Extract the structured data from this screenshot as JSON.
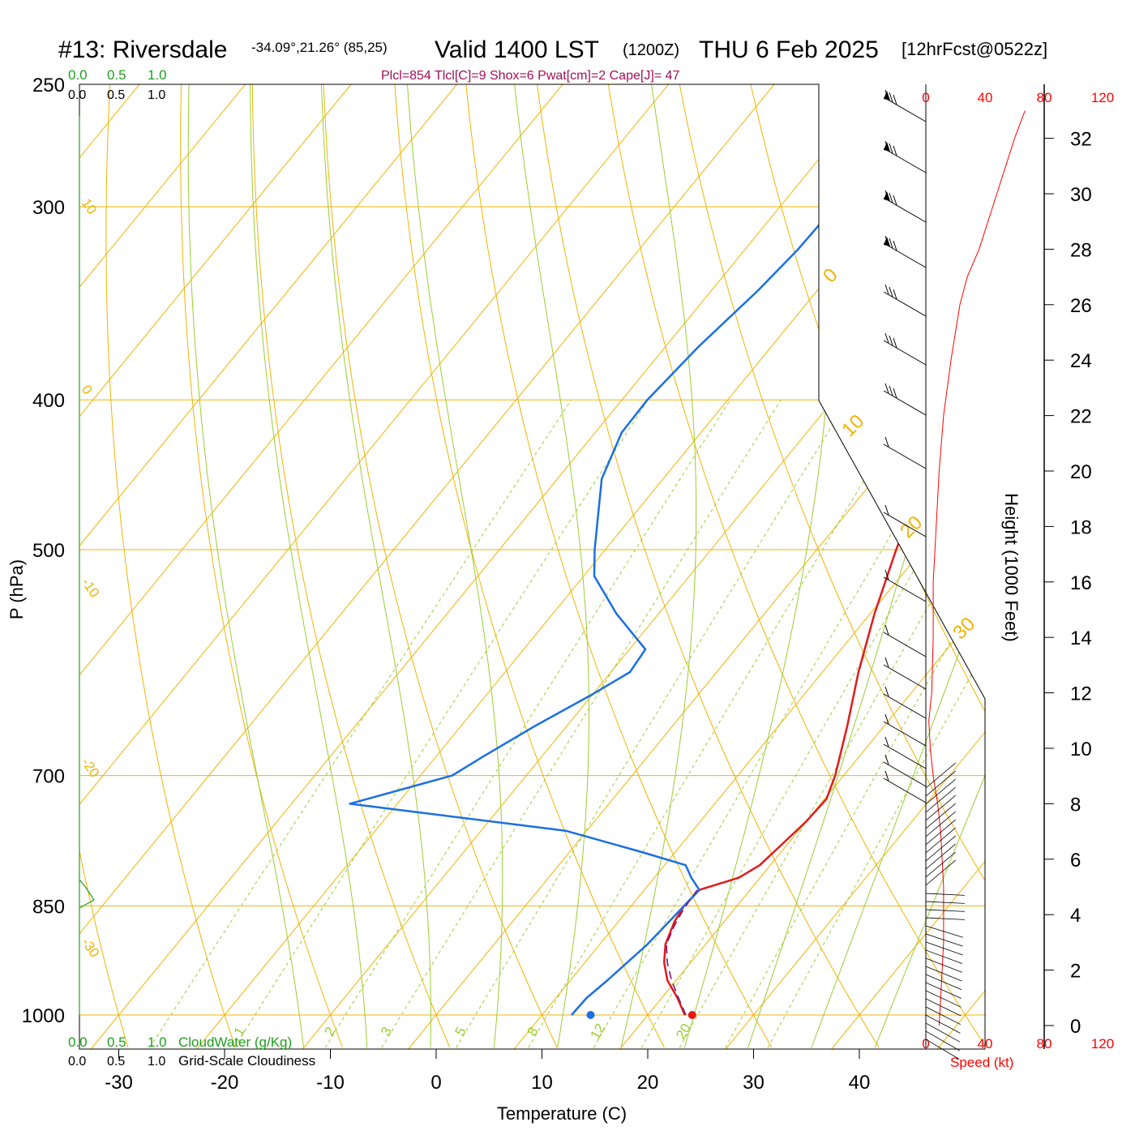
{
  "header": {
    "station": "#13: Riversdale",
    "coords": "-34.09°,21.26° (85,25)",
    "valid": "Valid 1400 LST",
    "zulu": "(1200Z)",
    "date": "THU 6 Feb 2025",
    "forecast": "[12hrFcst@0522z]",
    "indices": "Plcl=854 Tlcl[C]=9 Shox=6 Pwat[cm]=2 Cape[J]= 47"
  },
  "colors": {
    "temperature": "#e31a1a",
    "dewpoint": "#1a6fe3",
    "isotherm": "#f0b400",
    "dry_adiabat": "#f0b400",
    "moist_adiabat": "#9acd32",
    "mixing_ratio": "#9acd32",
    "cloudwater": "#1ea01e",
    "parcel": "#7a1a7a",
    "indices_text": "#a0105a",
    "speed": "#ff0000"
  },
  "chart_data": {
    "type": "line",
    "title": "#13: Riversdale",
    "xlabel": "Temperature (C)",
    "ylabel": "P (hPa)",
    "x_ticks": [
      -30,
      -20,
      -10,
      0,
      10,
      20,
      30,
      40
    ],
    "y_ticks": [
      250,
      300,
      400,
      500,
      700,
      850,
      1000
    ],
    "pressure_range": [
      250,
      1000
    ],
    "skewed_isotherm_labels": [
      "10",
      "0",
      "-10",
      "-20",
      "-30"
    ],
    "dry_adiabat_labels": [
      "0",
      "10",
      "20",
      "30"
    ],
    "mixing_ratio_labels": [
      "1",
      "2",
      "3",
      "5",
      "8",
      "12",
      "20"
    ],
    "series": [
      {
        "name": "temperature",
        "points": [
          [
            1000,
            23.5
          ],
          [
            975,
            21.5
          ],
          [
            950,
            19.2
          ],
          [
            925,
            17.5
          ],
          [
            900,
            16.2
          ],
          [
            870,
            15.3
          ],
          [
            850,
            15.0
          ],
          [
            830,
            15.2
          ],
          [
            815,
            18.0
          ],
          [
            800,
            19.0
          ],
          [
            775,
            19.5
          ],
          [
            750,
            20.0
          ],
          [
            725,
            20.2
          ],
          [
            700,
            19.2
          ],
          [
            650,
            16.5
          ],
          [
            600,
            13.4
          ],
          [
            550,
            10.4
          ],
          [
            500,
            7.5
          ],
          [
            450,
            4.7
          ],
          [
            400,
            2.0
          ],
          [
            370,
            0.2
          ],
          [
            340,
            -1.3
          ],
          [
            320,
            -1.9
          ],
          [
            300,
            -2.6
          ],
          [
            275,
            -3.5
          ],
          [
            262,
            -4.2
          ]
        ]
      },
      {
        "name": "dewpoint",
        "points": [
          [
            1000,
            12.8
          ],
          [
            975,
            12.9
          ],
          [
            950,
            13.5
          ],
          [
            900,
            14.5
          ],
          [
            850,
            15.0
          ],
          [
            830,
            15.2
          ],
          [
            815,
            13.5
          ],
          [
            800,
            12.0
          ],
          [
            785,
            7.0
          ],
          [
            760,
            -2.0
          ],
          [
            730,
            -24.5
          ],
          [
            700,
            -17.0
          ],
          [
            680,
            -15.5
          ],
          [
            650,
            -13.0
          ],
          [
            620,
            -10.0
          ],
          [
            600,
            -8.2
          ],
          [
            580,
            -8.5
          ],
          [
            550,
            -14.0
          ],
          [
            520,
            -19.0
          ],
          [
            500,
            -21.0
          ],
          [
            450,
            -25.8
          ],
          [
            420,
            -27.5
          ],
          [
            400,
            -27.6
          ],
          [
            370,
            -26.9
          ],
          [
            340,
            -25.6
          ],
          [
            320,
            -25.0
          ],
          [
            300,
            -24.8
          ],
          [
            275,
            -24.3
          ],
          [
            262,
            -24.5
          ]
        ]
      },
      {
        "name": "parcel",
        "points": [
          [
            1000,
            23.6
          ],
          [
            975,
            21.6
          ],
          [
            950,
            19.6
          ],
          [
            925,
            17.8
          ],
          [
            900,
            16.3
          ],
          [
            875,
            15.6
          ],
          [
            854,
            15.2
          ],
          [
            830,
            15.0
          ]
        ]
      }
    ],
    "surface_temperature": 24.2,
    "surface_dewpoint": 14.6,
    "cloudwater_label": "CloudWater (g/Kg)",
    "cloudiness_label": "Grid-Scale Cloudiness",
    "cloud_axis_ticks": [
      "0.0",
      "0.5",
      "1.0"
    ],
    "wind_speed_axis": {
      "label": "Speed (kt)",
      "ticks": [
        "0",
        "40",
        "80",
        "120"
      ]
    },
    "height_axis": {
      "label": "Height (1000 Feet)",
      "ticks": [
        "0",
        "2",
        "4",
        "6",
        "8",
        "10",
        "12",
        "14",
        "16",
        "18",
        "20",
        "22",
        "24",
        "26",
        "28",
        "30",
        "32"
      ]
    },
    "wind_speed_profile": [
      [
        0,
        9
      ],
      [
        1,
        10
      ],
      [
        2,
        11
      ],
      [
        3,
        12
      ],
      [
        4,
        12
      ],
      [
        5,
        12
      ],
      [
        6,
        11
      ],
      [
        7,
        10
      ],
      [
        8,
        8
      ],
      [
        9,
        5
      ],
      [
        10,
        3
      ],
      [
        11,
        2
      ],
      [
        12,
        4
      ],
      [
        14,
        5
      ],
      [
        16,
        5
      ],
      [
        18,
        7
      ],
      [
        20,
        9
      ],
      [
        22,
        12
      ],
      [
        24,
        17
      ],
      [
        26,
        23
      ],
      [
        27,
        28
      ],
      [
        28,
        36
      ],
      [
        30,
        48
      ],
      [
        32,
        60
      ],
      [
        33,
        67
      ]
    ]
  }
}
